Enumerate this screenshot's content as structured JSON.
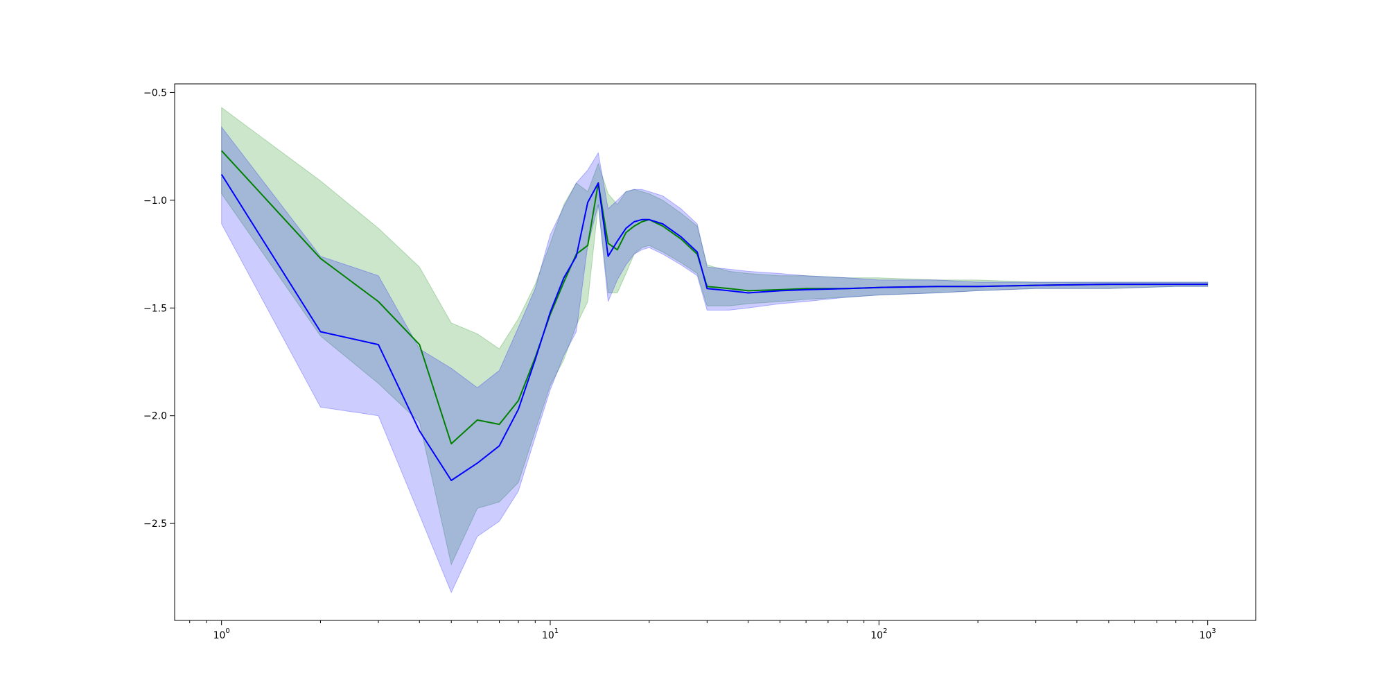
{
  "chart_data": {
    "type": "line",
    "title": "",
    "xlabel": "",
    "ylabel": "",
    "xscale": "log",
    "xlim": [
      0.72,
      1400
    ],
    "ylim": [
      -2.95,
      -0.46
    ],
    "grid": false,
    "legend": "none",
    "x_ticks": [
      {
        "value": 1,
        "base": "10",
        "exp": "0"
      },
      {
        "value": 10,
        "base": "10",
        "exp": "1"
      },
      {
        "value": 100,
        "base": "10",
        "exp": "2"
      },
      {
        "value": 1000,
        "base": "10",
        "exp": "3"
      }
    ],
    "y_ticks": [
      {
        "value": -0.5,
        "label": "−0.5"
      },
      {
        "value": -1.0,
        "label": "−1.0"
      },
      {
        "value": -1.5,
        "label": "−1.5"
      },
      {
        "value": -2.0,
        "label": "−2.0"
      },
      {
        "value": -2.5,
        "label": "−2.5"
      }
    ],
    "series": [
      {
        "color": "#008000",
        "band_color": "#008000",
        "band_opacity": 0.2,
        "x": [
          1,
          2,
          3,
          4,
          5,
          6,
          7,
          8,
          9,
          10,
          11,
          12,
          13,
          14,
          15,
          16,
          17,
          18,
          19,
          20,
          22,
          25,
          28,
          30,
          35,
          40,
          50,
          60,
          80,
          100,
          150,
          200,
          300,
          500,
          800,
          1000
        ],
        "values": [
          -0.77,
          -1.27,
          -1.47,
          -1.67,
          -2.13,
          -2.02,
          -2.04,
          -1.93,
          -1.73,
          -1.53,
          -1.38,
          -1.25,
          -1.21,
          -0.92,
          -1.2,
          -1.23,
          -1.15,
          -1.12,
          -1.1,
          -1.09,
          -1.12,
          -1.18,
          -1.25,
          -1.4,
          -1.41,
          -1.42,
          -1.415,
          -1.41,
          -1.41,
          -1.405,
          -1.4,
          -1.4,
          -1.395,
          -1.39,
          -1.39,
          -1.39
        ],
        "upper": [
          -0.57,
          -0.91,
          -1.13,
          -1.31,
          -1.57,
          -1.62,
          -1.69,
          -1.55,
          -1.39,
          -1.2,
          -1.02,
          -0.92,
          -0.96,
          -0.83,
          -0.97,
          -1.02,
          -0.96,
          -0.95,
          -0.96,
          -0.97,
          -1.0,
          -1.06,
          -1.12,
          -1.3,
          -1.33,
          -1.34,
          -1.35,
          -1.35,
          -1.36,
          -1.36,
          -1.37,
          -1.37,
          -1.38,
          -1.38,
          -1.38,
          -1.38
        ],
        "lower": [
          -0.97,
          -1.63,
          -1.85,
          -2.03,
          -2.69,
          -2.43,
          -2.4,
          -2.31,
          -2.07,
          -1.86,
          -1.74,
          -1.58,
          -1.47,
          -1.02,
          -1.43,
          -1.43,
          -1.34,
          -1.25,
          -1.22,
          -1.21,
          -1.24,
          -1.29,
          -1.34,
          -1.49,
          -1.49,
          -1.48,
          -1.47,
          -1.46,
          -1.45,
          -1.44,
          -1.43,
          -1.42,
          -1.41,
          -1.41,
          -1.4,
          -1.4
        ]
      },
      {
        "color": "#0000ff",
        "band_color": "#0000ff",
        "band_opacity": 0.2,
        "x": [
          1,
          2,
          3,
          4,
          5,
          6,
          7,
          8,
          9,
          10,
          11,
          12,
          13,
          14,
          15,
          16,
          17,
          18,
          19,
          20,
          22,
          25,
          28,
          30,
          35,
          40,
          50,
          60,
          80,
          100,
          150,
          200,
          300,
          500,
          800,
          1000
        ],
        "values": [
          -0.88,
          -1.61,
          -1.67,
          -2.07,
          -2.3,
          -2.22,
          -2.14,
          -1.97,
          -1.74,
          -1.52,
          -1.36,
          -1.26,
          -1.01,
          -0.92,
          -1.26,
          -1.19,
          -1.13,
          -1.1,
          -1.09,
          -1.09,
          -1.11,
          -1.17,
          -1.24,
          -1.41,
          -1.42,
          -1.43,
          -1.42,
          -1.415,
          -1.41,
          -1.405,
          -1.4,
          -1.4,
          -1.395,
          -1.39,
          -1.39,
          -1.39
        ],
        "upper": [
          -0.66,
          -1.26,
          -1.35,
          -1.69,
          -1.78,
          -1.87,
          -1.79,
          -1.59,
          -1.41,
          -1.16,
          -1.03,
          -0.92,
          -0.86,
          -0.78,
          -1.04,
          -1.0,
          -0.96,
          -0.95,
          -0.95,
          -0.96,
          -0.98,
          -1.04,
          -1.11,
          -1.31,
          -1.32,
          -1.33,
          -1.34,
          -1.35,
          -1.36,
          -1.37,
          -1.37,
          -1.38,
          -1.38,
          -1.38,
          -1.38,
          -1.38
        ],
        "lower": [
          -1.11,
          -1.96,
          -2.0,
          -2.46,
          -2.82,
          -2.56,
          -2.49,
          -2.35,
          -2.1,
          -1.88,
          -1.72,
          -1.61,
          -1.21,
          -1.02,
          -1.47,
          -1.37,
          -1.3,
          -1.25,
          -1.23,
          -1.22,
          -1.25,
          -1.3,
          -1.35,
          -1.51,
          -1.51,
          -1.5,
          -1.48,
          -1.47,
          -1.45,
          -1.44,
          -1.43,
          -1.42,
          -1.41,
          -1.41,
          -1.4,
          -1.4
        ]
      }
    ]
  }
}
